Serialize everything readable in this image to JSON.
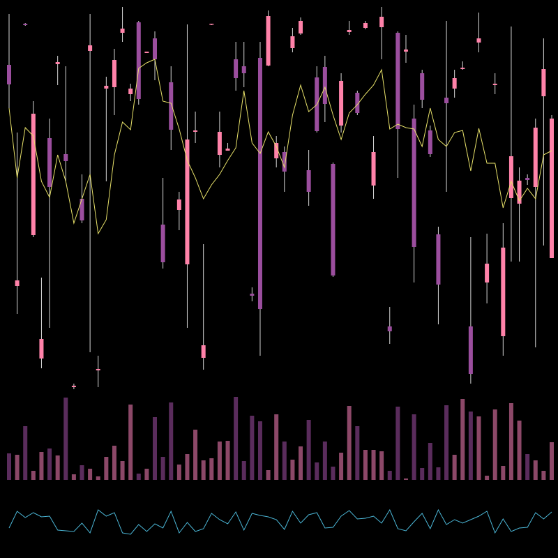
{
  "chart_data": [
    {
      "type": "candlestick",
      "ylim": [
        0,
        560
      ],
      "up_color": "#ff82a9",
      "down_color": "#9b4e9e",
      "wick_color": "#d8d8d8",
      "open": [
        467,
        150,
        526,
        223,
        46,
        362,
        468,
        339,
        5,
        275,
        487,
        29,
        433,
        435,
        513,
        425,
        528,
        484,
        505,
        238,
        442,
        259,
        181,
        371,
        47,
        525,
        338,
        344,
        475,
        465,
        139,
        477,
        466,
        333,
        342,
        491,
        512,
        316,
        449,
        464,
        325,
        380,
        514,
        427,
        520,
        294,
        521,
        92,
        513,
        486,
        390,
        455,
        373,
        224,
        420,
        433,
        461,
        92,
        499,
        155,
        438,
        78,
        276,
        268,
        305,
        292,
        422,
        190
      ],
      "high": [
        540,
        370,
        527,
        415,
        162,
        390,
        480,
        465,
        10,
        310,
        540,
        50,
        450,
        490,
        550,
        440,
        530,
        486,
        515,
        305,
        465,
        285,
        525,
        400,
        210,
        526,
        400,
        355,
        500,
        500,
        148,
        500,
        545,
        365,
        350,
        520,
        535,
        345,
        465,
        480,
        327,
        455,
        530,
        430,
        530,
        365,
        550,
        120,
        515,
        510,
        410,
        460,
        380,
        235,
        530,
        460,
        472,
        220,
        542,
        225,
        455,
        240,
        522,
        320,
        310,
        390,
        505,
        395
      ],
      "low": [
        405,
        110,
        523,
        220,
        32,
        90,
        438,
        300,
        2,
        240,
        55,
        5,
        300,
        395,
        500,
        415,
        410,
        484,
        445,
        175,
        345,
        230,
        90,
        355,
        30,
        524,
        320,
        344,
        430,
        435,
        128,
        50,
        465,
        320,
        285,
        485,
        510,
        265,
        370,
        385,
        163,
        370,
        510,
        395,
        518,
        275,
        475,
        67,
        305,
        470,
        155,
        405,
        335,
        95,
        285,
        420,
        460,
        10,
        485,
        125,
        425,
        50,
        185,
        185,
        295,
        62,
        208,
        190
      ],
      "close": [
        439,
        158,
        524,
        397,
        74,
        292,
        471,
        329,
        7,
        244,
        495,
        31,
        437,
        474,
        519,
        433,
        418,
        486,
        475,
        184,
        374,
        274,
        360,
        373,
        65,
        526,
        371,
        347,
        448,
        455,
        136,
        117,
        537,
        355,
        314,
        508,
        530,
        285,
        372,
        411,
        165,
        444,
        517,
        398,
        527,
        342,
        536,
        85,
        375,
        489,
        206,
        417,
        339,
        152,
        412,
        448,
        463,
        24,
        505,
        182,
        440,
        205,
        336,
        301,
        302,
        377,
        461,
        390
      ],
      "line": {
        "color": "#e8e26a",
        "values": [
          405,
          305,
          377,
          365,
          300,
          277,
          338,
          300,
          240,
          275,
          310,
          225,
          245,
          338,
          385,
          374,
          462,
          470,
          475,
          415,
          412,
          375,
          330,
          305,
          275,
          295,
          310,
          330,
          348,
          430,
          355,
          340,
          371,
          350,
          320,
          395,
          438,
          400,
          410,
          435,
          395,
          360,
          398,
          410,
          425,
          438,
          460,
          375,
          382,
          377,
          375,
          350,
          405,
          360,
          350,
          370,
          373,
          315,
          376,
          326,
          326,
          262,
          300,
          272,
          290,
          275,
          338,
          344
        ]
      }
    },
    {
      "type": "bar",
      "ylim": [
        0,
        128
      ],
      "up_color": "#8c4868",
      "down_color": "#5a2c5c",
      "values": [
        38,
        36,
        77,
        13,
        40,
        45,
        35,
        118,
        8,
        21,
        16,
        5,
        33,
        49,
        27,
        108,
        9,
        16,
        90,
        33,
        111,
        22,
        37,
        72,
        28,
        31,
        55,
        56,
        119,
        27,
        92,
        84,
        14,
        94,
        55,
        29,
        48,
        86,
        25,
        55,
        19,
        39,
        106,
        77,
        43,
        43,
        41,
        13,
        105,
        2,
        94,
        17,
        53,
        18,
        107,
        36,
        116,
        98,
        91,
        6,
        101,
        20,
        110,
        85,
        37,
        28,
        13,
        54
      ]
    },
    {
      "type": "line",
      "ylim": [
        0,
        60
      ],
      "color": "#4bb6d6",
      "values": [
        23,
        47,
        38,
        45,
        39,
        40,
        20,
        19,
        18,
        30,
        16,
        49,
        40,
        45,
        16,
        14,
        28,
        18,
        29,
        23,
        47,
        16,
        31,
        18,
        22,
        44,
        35,
        29,
        46,
        20,
        44,
        41,
        39,
        35,
        21,
        47,
        30,
        42,
        45,
        23,
        24,
        40,
        48,
        36,
        37,
        40,
        30,
        49,
        22,
        19,
        32,
        44,
        22,
        49,
        28,
        35,
        30,
        35,
        40,
        47,
        16,
        36,
        18,
        23,
        24,
        45,
        36,
        46
      ]
    }
  ]
}
